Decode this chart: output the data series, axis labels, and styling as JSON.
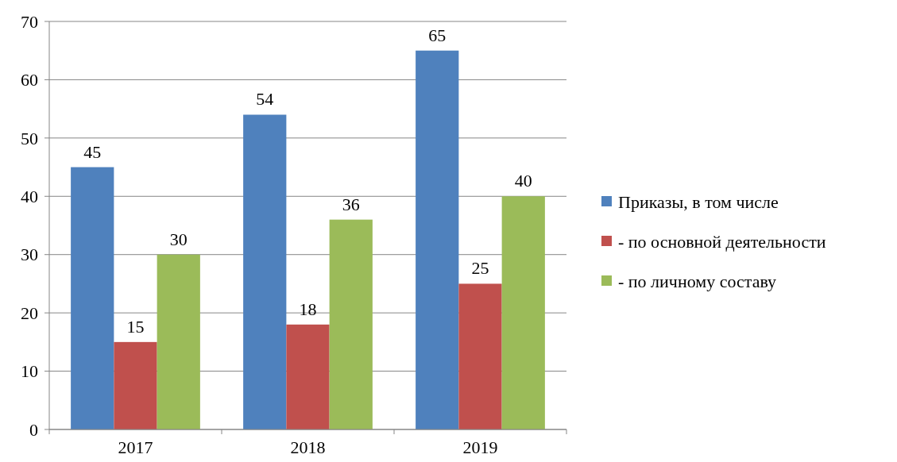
{
  "chart_data": {
    "type": "bar",
    "categories": [
      "2017",
      "2018",
      "2019"
    ],
    "series": [
      {
        "name": "Приказы, в том числе",
        "color": "#4f81bd",
        "values": [
          45,
          54,
          65
        ]
      },
      {
        "name": "- по основной деятельности",
        "color": "#c0504d",
        "values": [
          15,
          18,
          25
        ]
      },
      {
        "name": "- по личному составу",
        "color": "#9bbb59",
        "values": [
          30,
          36,
          40
        ]
      }
    ],
    "ylim": [
      0,
      70
    ],
    "yticks": [
      0,
      10,
      20,
      30,
      40,
      50,
      60,
      70
    ],
    "grid": "y",
    "legend": "right",
    "data_labels": true
  }
}
